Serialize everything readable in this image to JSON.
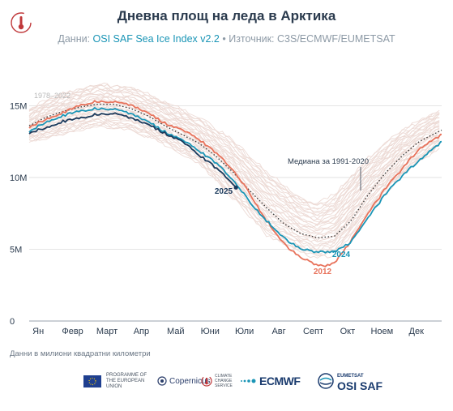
{
  "header": {
    "title": "Дневна площ на леда в Арктика",
    "subtitle_prefix": "Данни: ",
    "subtitle_data": "OSI SAF Sea Ice Index v2.2",
    "subtitle_suffix": " • Източник: C3S/ECMWF/EUMETSAT"
  },
  "footnote": "Данни в милиони квадратни километри",
  "colors": {
    "history": "#ecd9d4",
    "series_2025": "#1b3a5c",
    "series_2024": "#1a95b6",
    "series_2012": "#e8735c",
    "median": "#333333",
    "grid": "#dcdcdc"
  },
  "footer": {
    "eu": "Programme of the European Union",
    "copernicus": "Copernicus",
    "c3s": "Climate Change Service",
    "ecmwf": "ECMWF",
    "osi_top": "EUMETSAT",
    "osi_main": "OSI SAF"
  },
  "chart_data": {
    "type": "line",
    "x_categories": [
      "Ян",
      "Февр",
      "Март",
      "Апр",
      "Май",
      "Юни",
      "Юли",
      "Авг",
      "Септ",
      "Окт",
      "Ноем",
      "Дек"
    ],
    "y_ticks": [
      "0",
      "5M",
      "10M",
      "15M"
    ],
    "ylim": [
      0,
      17
    ],
    "history_label": "1978–2022",
    "median_label": "Медиана за 1991-2020",
    "series": [
      {
        "name": "2025",
        "color": "#1b3a5c",
        "x": [
          0,
          15,
          30,
          45,
          60,
          75,
          90,
          105,
          120,
          135,
          150,
          160,
          170,
          178,
          183
        ],
        "y": [
          13.1,
          13.5,
          13.9,
          14.1,
          14.4,
          14.5,
          14.1,
          13.7,
          13.1,
          12.5,
          11.6,
          11.0,
          10.3,
          9.8,
          9.3
        ]
      },
      {
        "name": "2024",
        "color": "#1a95b6",
        "x": [
          0,
          15,
          30,
          45,
          60,
          75,
          90,
          105,
          120,
          135,
          150,
          165,
          180,
          195,
          210,
          225,
          240,
          255,
          270,
          285,
          300,
          315,
          330,
          345,
          365
        ],
        "y": [
          13.2,
          13.9,
          14.3,
          14.6,
          14.8,
          14.8,
          14.4,
          13.9,
          13.2,
          12.6,
          11.9,
          11.0,
          9.9,
          8.3,
          7.0,
          5.8,
          5.0,
          4.8,
          4.8,
          5.5,
          7.2,
          8.8,
          10.1,
          11.2,
          12.5
        ]
      },
      {
        "name": "2012",
        "color": "#e8735c",
        "x": [
          0,
          15,
          30,
          45,
          60,
          75,
          90,
          105,
          120,
          135,
          150,
          165,
          180,
          195,
          210,
          225,
          240,
          255,
          260,
          270,
          285,
          300,
          315,
          330,
          345,
          365
        ],
        "y": [
          13.5,
          14.1,
          14.5,
          15.0,
          15.3,
          15.3,
          15.0,
          14.5,
          13.8,
          13.3,
          12.7,
          11.7,
          10.6,
          8.9,
          7.0,
          5.4,
          4.4,
          3.9,
          3.8,
          4.0,
          5.6,
          7.5,
          9.2,
          10.6,
          12.0,
          13.0
        ]
      },
      {
        "name": "Медиана за 1991-2020",
        "color": "#333333",
        "x": [
          0,
          15,
          30,
          45,
          60,
          75,
          90,
          105,
          120,
          135,
          150,
          165,
          180,
          195,
          210,
          225,
          240,
          255,
          270,
          285,
          300,
          315,
          330,
          345,
          365
        ],
        "y": [
          13.6,
          14.2,
          14.6,
          14.9,
          15.1,
          15.1,
          14.8,
          14.3,
          13.6,
          13.0,
          12.4,
          11.5,
          10.4,
          9.1,
          7.9,
          6.8,
          6.1,
          5.8,
          5.9,
          7.0,
          8.8,
          10.3,
          11.5,
          12.5,
          13.3
        ]
      }
    ],
    "history_envelope": {
      "x": [
        0,
        30,
        60,
        90,
        120,
        150,
        180,
        210,
        240,
        255,
        270,
        300,
        330,
        365
      ],
      "y_low": [
        12.5,
        13.0,
        13.6,
        13.3,
        12.3,
        11.0,
        8.6,
        6.0,
        4.8,
        4.4,
        4.6,
        7.5,
        10.2,
        12.2
      ],
      "y_high": [
        14.8,
        15.9,
        16.5,
        16.3,
        15.3,
        14.2,
        12.6,
        10.4,
        8.6,
        8.2,
        8.8,
        11.4,
        13.3,
        14.8
      ]
    },
    "grid": true
  }
}
